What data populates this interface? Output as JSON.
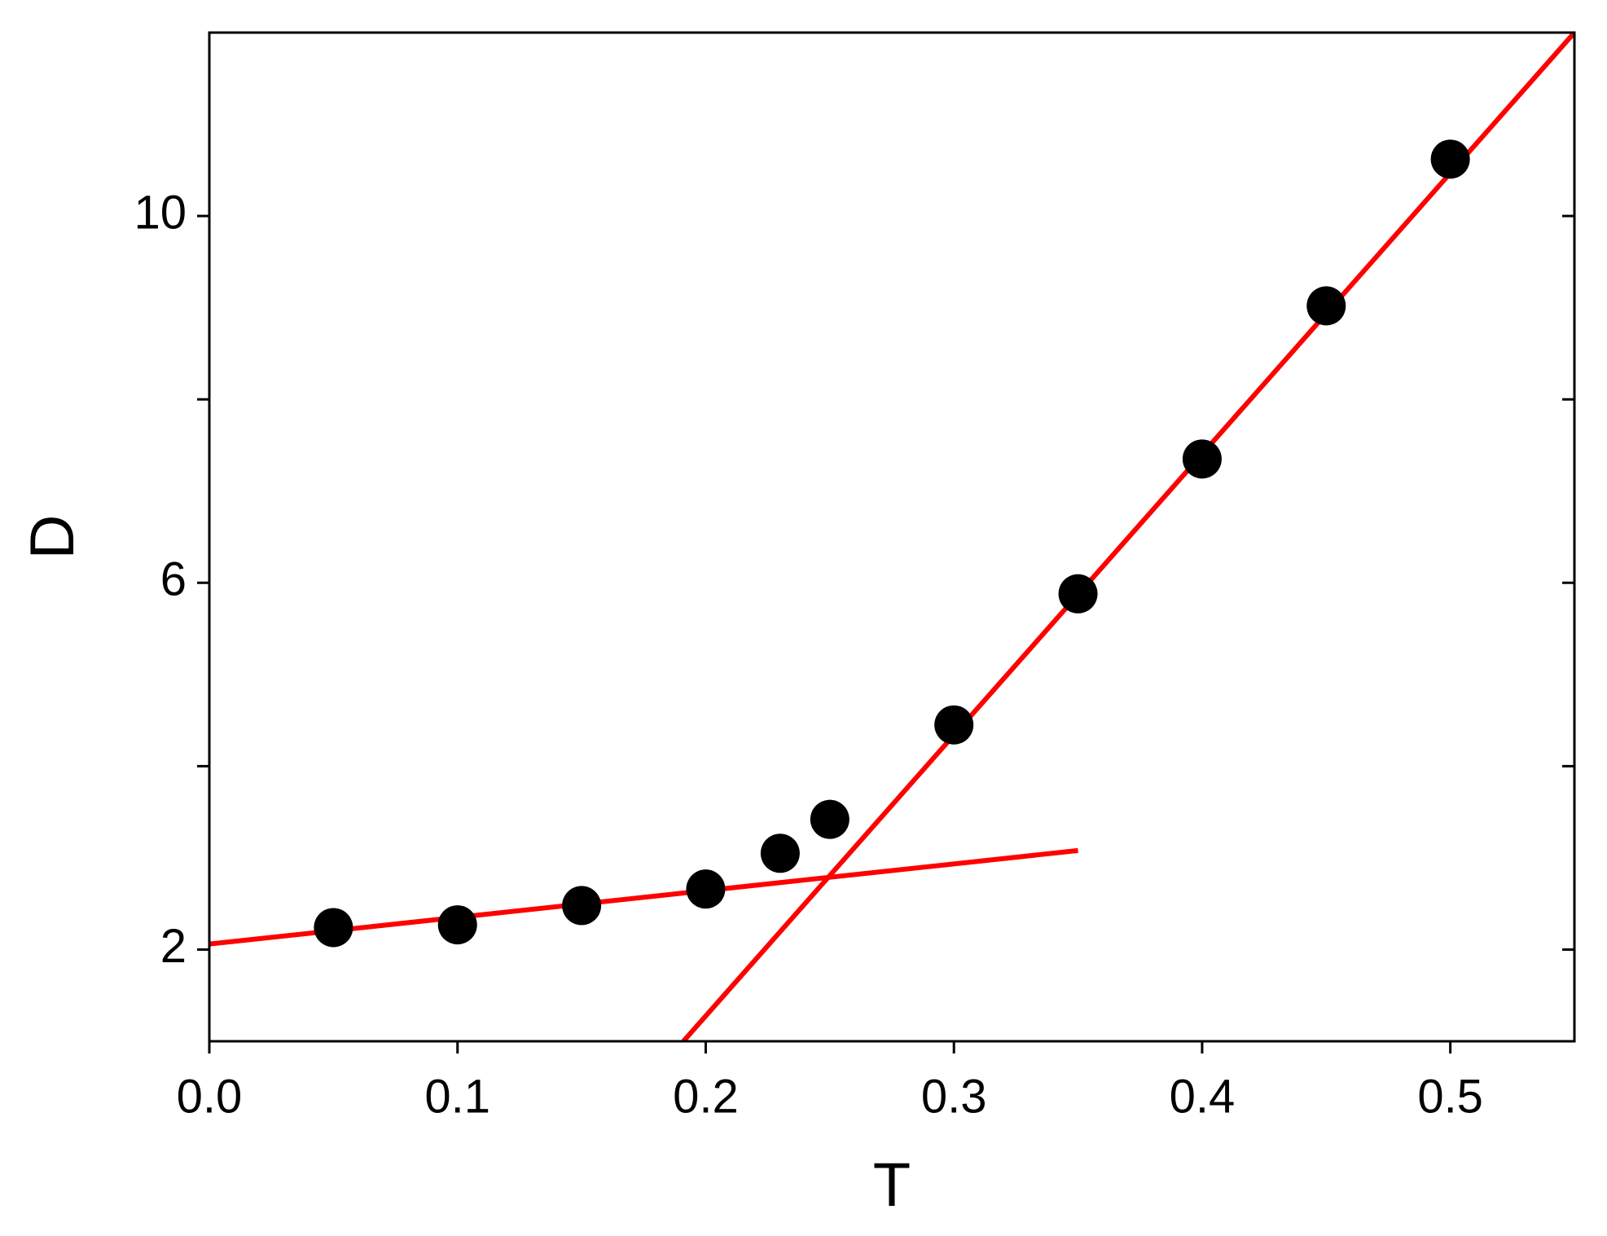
{
  "chart_data": {
    "type": "scatter",
    "xlabel": "T",
    "ylabel": "D",
    "xlim": [
      0,
      0.55
    ],
    "ylim": [
      1,
      12
    ],
    "xticks": [
      {
        "value": 0,
        "label": "0.0"
      },
      0.1,
      0.2,
      0.3,
      0.4,
      0.5
    ],
    "yticks": [
      2,
      6,
      10
    ],
    "yminorticks": [
      4,
      8
    ],
    "series": [
      {
        "style": "markers",
        "color": "#000000",
        "x": [
          0.05,
          0.1,
          0.15,
          0.2,
          0.23,
          0.25,
          0.3,
          0.35,
          0.4,
          0.45,
          0.5
        ],
        "values": [
          2.24,
          2.27,
          2.48,
          2.66,
          3.05,
          3.42,
          4.45,
          5.88,
          7.35,
          9.02,
          10.62
        ]
      },
      {
        "style": "line",
        "color": "#ff0000",
        "x": [
          0,
          0.35
        ],
        "values": [
          2.06,
          3.08
        ]
      },
      {
        "style": "line",
        "color": "#ff0000",
        "x": [
          0.191,
          0.55
        ],
        "values": [
          1,
          12
        ]
      }
    ]
  }
}
